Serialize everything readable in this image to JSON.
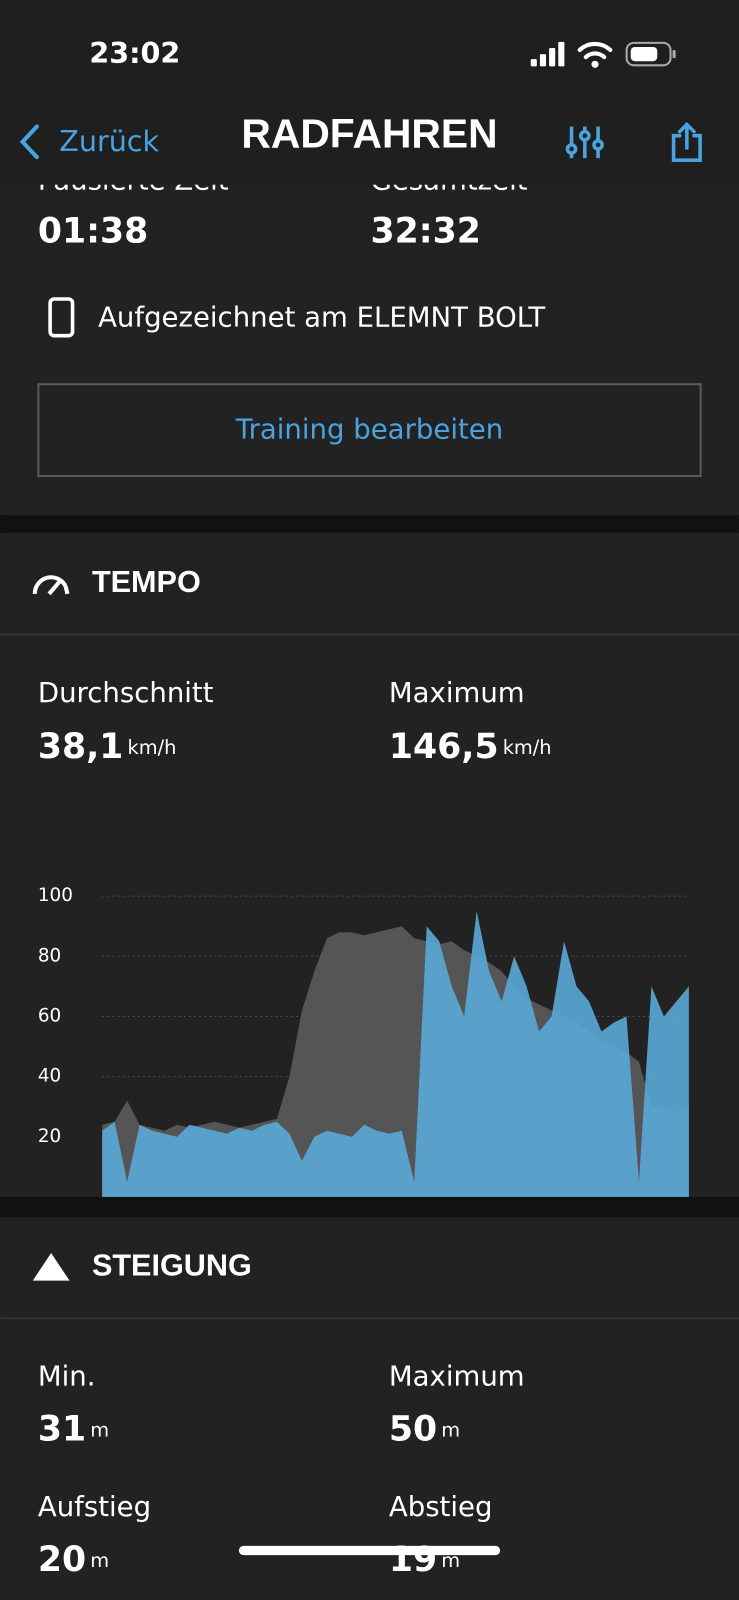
{
  "status_bar": {
    "time": "23:02"
  },
  "nav": {
    "back": "Zurück",
    "title": "RADFAHREN"
  },
  "summary": {
    "stats": [
      {
        "label": "Pausierte Zeit",
        "value": "01:38"
      },
      {
        "label": "Gesamtzeit",
        "value": "32:32"
      }
    ],
    "device": "Aufgezeichnet am ELEMNT BOLT",
    "edit_button": "Training bearbeiten"
  },
  "tempo": {
    "title": "TEMPO",
    "stats": [
      {
        "label": "Durchschnitt",
        "value": "38,1",
        "unit": "km/h"
      },
      {
        "label": "Maximum",
        "value": "146,5",
        "unit": "km/h"
      }
    ],
    "chart": {
      "type": "area",
      "ylim": [
        0,
        115
      ],
      "yticks": [
        20,
        40,
        60,
        80,
        100
      ],
      "grid": true,
      "series": [
        {
          "color": "#555555",
          "values": [
            24,
            25,
            32,
            24,
            23,
            22,
            24,
            23,
            24,
            25,
            24,
            23,
            24,
            25,
            26,
            40,
            62,
            75,
            86,
            88,
            88,
            87,
            88,
            89,
            90,
            86,
            85,
            84,
            85,
            82,
            80,
            78,
            75,
            70,
            66,
            64,
            62,
            60,
            58,
            55,
            52,
            50,
            48,
            45,
            30,
            30,
            28,
            30
          ]
        },
        {
          "color": "#5aaad8",
          "values": [
            22,
            25,
            5,
            24,
            22,
            21,
            20,
            24,
            23,
            22,
            21,
            23,
            22,
            24,
            25,
            21,
            12,
            20,
            22,
            21,
            20,
            24,
            22,
            21,
            22,
            5,
            90,
            85,
            70,
            60,
            95,
            75,
            65,
            80,
            70,
            55,
            60,
            85,
            70,
            65,
            55,
            58,
            60,
            5,
            70,
            60,
            65,
            70
          ]
        }
      ]
    }
  },
  "steigung": {
    "title": "STEIGUNG",
    "stats": [
      {
        "label": "Min.",
        "value": "31",
        "unit": "m"
      },
      {
        "label": "Maximum",
        "value": "50",
        "unit": "m"
      },
      {
        "label": "Aufstieg",
        "value": "20",
        "unit": "m"
      },
      {
        "label": "Abstieg",
        "value": "19",
        "unit": "m"
      }
    ]
  }
}
